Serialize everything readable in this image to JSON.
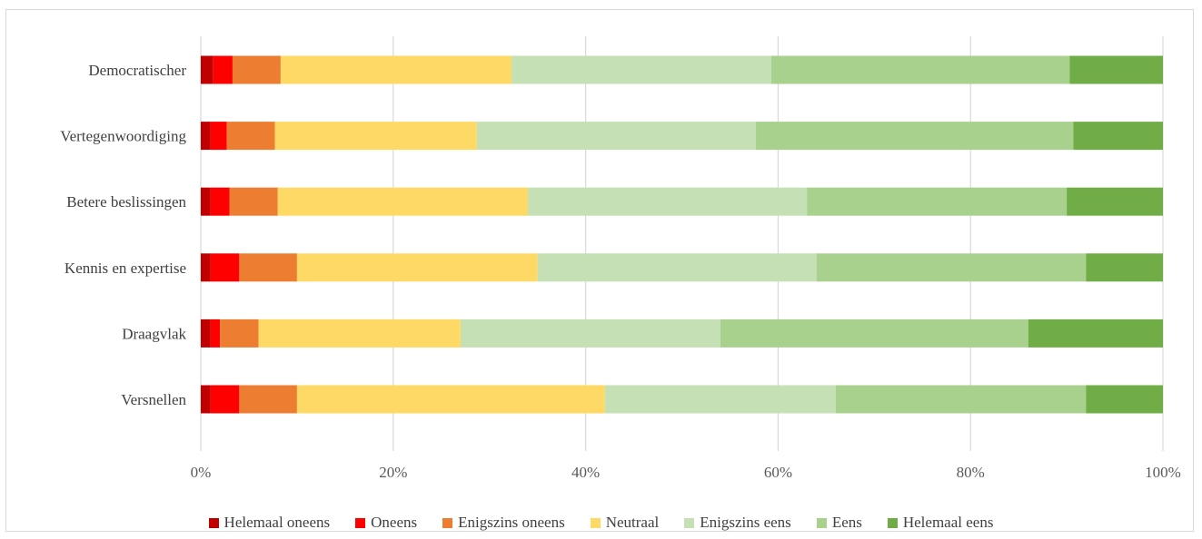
{
  "chart_data": {
    "type": "bar",
    "orientation": "horizontal",
    "stacked": "percent",
    "categories": [
      "Democratischer",
      "Vertegenwoordiging",
      "Betere beslissingen",
      "Kennis en expertise",
      "Draagvlak",
      "Versnellen"
    ],
    "series": [
      {
        "name": "Helemaal oneens",
        "color": "#c00000",
        "values": [
          1.3,
          1.0,
          1.0,
          1.0,
          1.0,
          1.0
        ]
      },
      {
        "name": "Oneens",
        "color": "#ff0000",
        "values": [
          2.0,
          1.7,
          2.0,
          3.0,
          1.0,
          3.0
        ]
      },
      {
        "name": "Enigszins oneens",
        "color": "#ed7d31",
        "values": [
          5.0,
          5.0,
          5.0,
          6.0,
          4.0,
          6.0
        ]
      },
      {
        "name": "Neutraal",
        "color": "#ffd966",
        "values": [
          24.0,
          21.0,
          26.0,
          25.0,
          21.0,
          32.0
        ]
      },
      {
        "name": "Enigszins eens",
        "color": "#c5e0b4",
        "values": [
          27.0,
          29.0,
          29.0,
          29.0,
          27.0,
          24.0
        ]
      },
      {
        "name": "Eens",
        "color": "#a9d18e",
        "values": [
          31.0,
          33.0,
          27.0,
          28.0,
          32.0,
          26.0
        ]
      },
      {
        "name": "Helemaal eens",
        "color": "#70ad47",
        "values": [
          9.7,
          9.3,
          10.0,
          8.0,
          14.0,
          8.0
        ]
      }
    ],
    "x_ticks": [
      "0%",
      "20%",
      "40%",
      "60%",
      "80%",
      "100%"
    ],
    "xlim": [
      0,
      100
    ],
    "grid": "vertical",
    "legend_position": "bottom",
    "title": "",
    "xlabel": "",
    "ylabel": ""
  }
}
